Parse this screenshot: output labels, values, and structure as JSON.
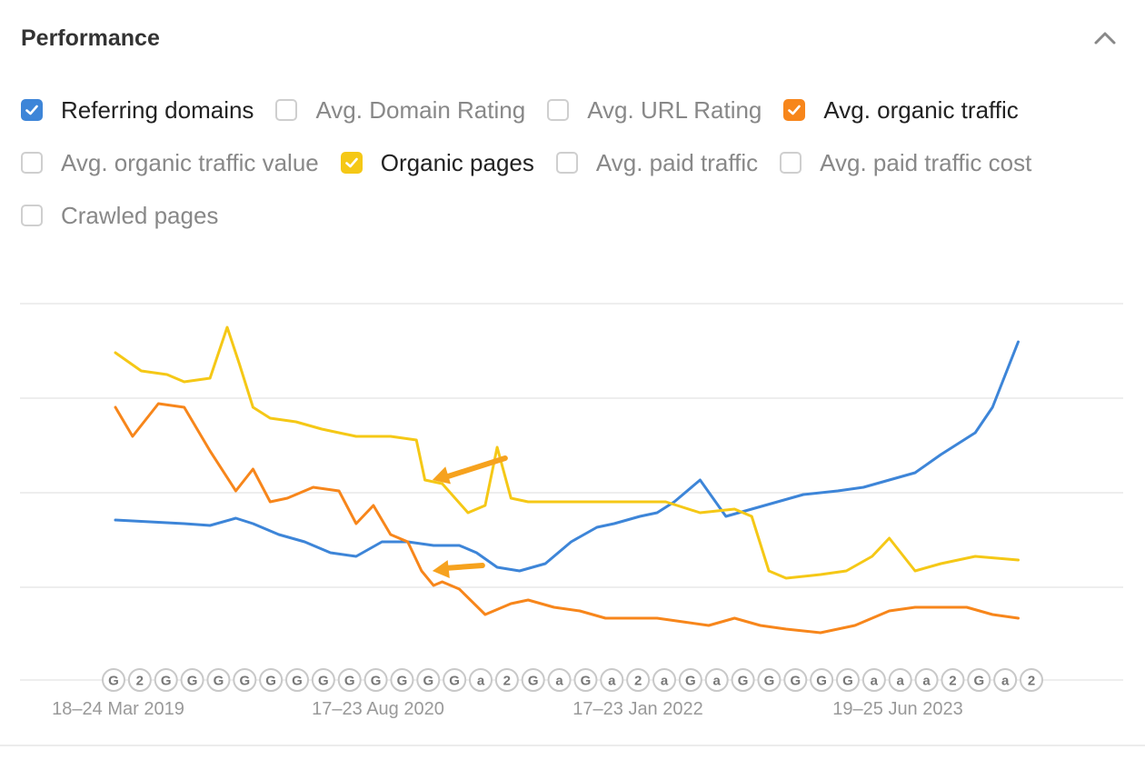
{
  "section": {
    "title": "Performance"
  },
  "checkboxes": [
    {
      "label": "Referring domains",
      "checked": true,
      "color": "#3d85d8"
    },
    {
      "label": "Avg. Domain Rating",
      "checked": false,
      "color": "#cfcfcf"
    },
    {
      "label": "Avg. URL Rating",
      "checked": false,
      "color": "#cfcfcf"
    },
    {
      "label": "Avg. organic traffic",
      "checked": true,
      "color": "#f7861b"
    },
    {
      "label": "Avg. organic traffic value",
      "checked": false,
      "color": "#cfcfcf"
    },
    {
      "label": "Organic pages",
      "checked": true,
      "color": "#f5c816"
    },
    {
      "label": "Avg. paid traffic",
      "checked": false,
      "color": "#cfcfcf"
    },
    {
      "label": "Avg. paid traffic cost",
      "checked": false,
      "color": "#cfcfcf"
    },
    {
      "label": "Crawled pages",
      "checked": false,
      "color": "#cfcfcf"
    }
  ],
  "chart_data": {
    "type": "line",
    "x_ticks": [
      "18–24 Mar 2019",
      "17–23 Aug 2020",
      "17–23 Jan 2022",
      "19–25 Jun 2023"
    ],
    "x_range": [
      2019.2,
      2024.5
    ],
    "y_range": [
      0,
      100
    ],
    "grid": true,
    "y_tick_labels_shown": false,
    "series": [
      {
        "name": "Referring domains",
        "color": "#3d85d8",
        "x": [
          2019.2,
          2019.4,
          2019.6,
          2019.75,
          2019.9,
          2020.0,
          2020.15,
          2020.3,
          2020.45,
          2020.6,
          2020.75,
          2020.9,
          2021.05,
          2021.2,
          2021.3,
          2021.42,
          2021.55,
          2021.7,
          2021.85,
          2022.0,
          2022.1,
          2022.25,
          2022.35,
          2022.45,
          2022.6,
          2022.75,
          2022.9,
          2023.05,
          2023.2,
          2023.4,
          2023.55,
          2023.7,
          2023.85,
          2024.0,
          2024.1,
          2024.2,
          2024.3,
          2024.45
        ],
        "y": [
          44,
          43.5,
          43,
          42.5,
          44.5,
          43,
          40,
          38,
          35,
          34,
          38,
          38,
          37,
          37,
          35,
          31,
          30,
          32,
          38,
          42,
          43,
          45,
          46,
          49,
          55,
          45,
          47,
          49,
          51,
          52,
          53,
          55,
          57,
          62,
          65,
          68,
          75,
          93
        ]
      },
      {
        "name": "Avg. organic traffic",
        "color": "#f7861b",
        "x": [
          2019.2,
          2019.3,
          2019.45,
          2019.6,
          2019.75,
          2019.9,
          2020.0,
          2020.1,
          2020.2,
          2020.35,
          2020.5,
          2020.6,
          2020.7,
          2020.8,
          2020.9,
          2020.98,
          2021.05,
          2021.1,
          2021.2,
          2021.35,
          2021.5,
          2021.6,
          2021.75,
          2021.9,
          2022.05,
          2022.2,
          2022.35,
          2022.5,
          2022.65,
          2022.8,
          2022.95,
          2023.1,
          2023.3,
          2023.5,
          2023.7,
          2023.85,
          2024.0,
          2024.15,
          2024.3,
          2024.45
        ],
        "y": [
          75,
          67,
          76,
          75,
          63,
          52,
          58,
          49,
          50,
          53,
          52,
          43,
          48,
          40,
          38,
          30,
          26,
          27,
          25,
          18,
          21,
          22,
          20,
          19,
          17,
          17,
          17,
          16,
          15,
          17,
          15,
          14,
          13,
          15,
          19,
          20,
          20,
          20,
          18,
          17
        ]
      },
      {
        "name": "Organic pages",
        "color": "#f5c816",
        "x": [
          2019.2,
          2019.35,
          2019.5,
          2019.6,
          2019.75,
          2019.85,
          2019.92,
          2020.0,
          2020.1,
          2020.25,
          2020.4,
          2020.6,
          2020.8,
          2020.95,
          2021.0,
          2021.1,
          2021.25,
          2021.35,
          2021.42,
          2021.5,
          2021.6,
          2021.8,
          2022.0,
          2022.2,
          2022.4,
          2022.6,
          2022.8,
          2022.9,
          2023.0,
          2023.1,
          2023.3,
          2023.45,
          2023.6,
          2023.7,
          2023.85,
          2024.0,
          2024.2,
          2024.45
        ],
        "y": [
          90,
          85,
          84,
          82,
          83,
          97,
          87,
          75,
          72,
          71,
          69,
          67,
          67,
          66,
          55,
          54,
          46,
          48,
          64,
          50,
          49,
          49,
          49,
          49,
          49,
          46,
          47,
          45,
          30,
          28,
          29,
          30,
          34,
          39,
          30,
          32,
          34,
          33
        ]
      }
    ],
    "annotations": [
      {
        "type": "arrow",
        "target_series": "Organic pages",
        "x": 2020.98
      },
      {
        "type": "arrow",
        "target_series": "Avg. organic traffic",
        "x": 2020.98
      }
    ],
    "event_markers": [
      "G",
      "2",
      "G",
      "G",
      "G",
      "G",
      "G",
      "G",
      "G",
      "G",
      "G",
      "G",
      "G",
      "G",
      "a",
      "2",
      "G",
      "a",
      "G",
      "a",
      "2",
      "a",
      "G",
      "a",
      "G",
      "G",
      "G",
      "G",
      "G",
      "a",
      "a",
      "a",
      "2",
      "G",
      "a",
      "2"
    ]
  }
}
